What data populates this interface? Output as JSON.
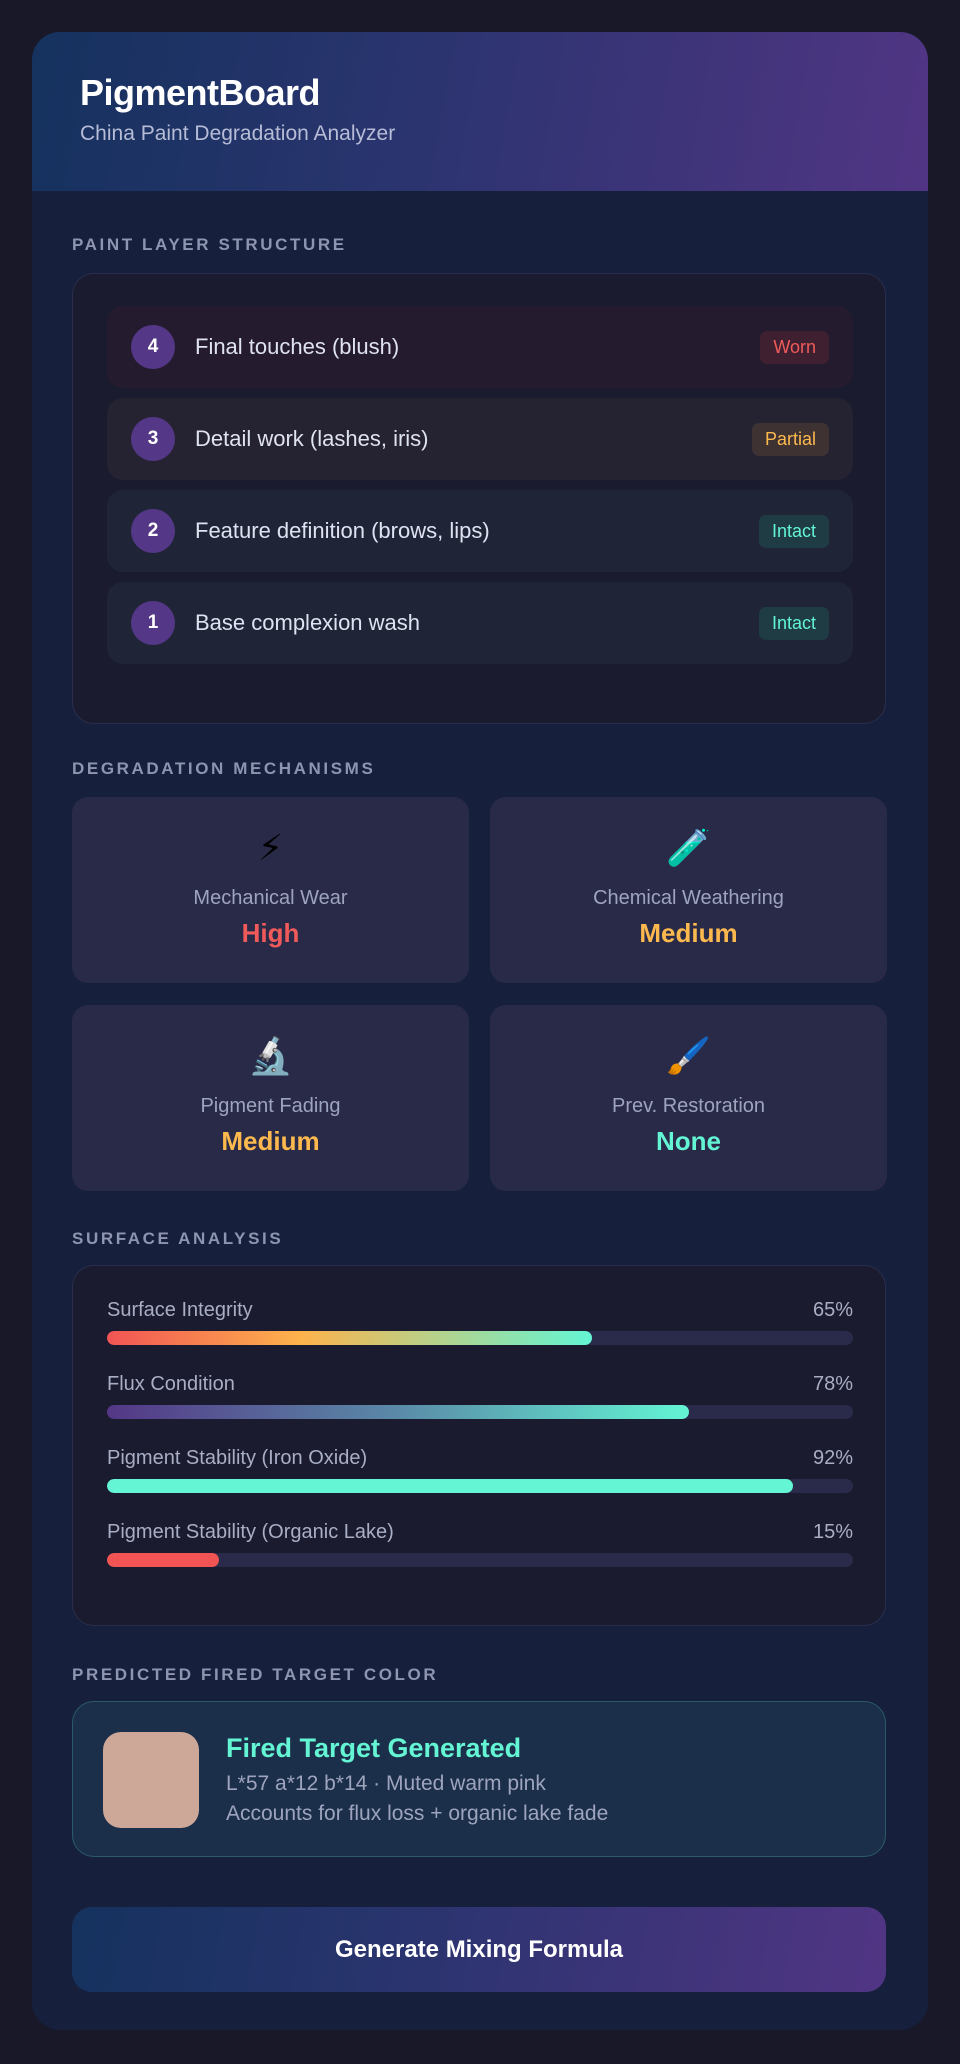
{
  "header": {
    "title": "PigmentBoard",
    "subtitle": "China Paint Degradation Analyzer"
  },
  "layers": {
    "label": "PAINT LAYER STRUCTURE",
    "items": [
      {
        "num": "4",
        "label": "Final touches (blush)",
        "status": "Worn",
        "color": "#f05a5a",
        "badge_bg": "#3e2030",
        "row_bg": "#251b2e"
      },
      {
        "num": "3",
        "label": "Detail work (lashes, iris)",
        "status": "Partial",
        "color": "#fdb94e",
        "badge_bg": "#3e3233",
        "row_bg": "#252231"
      },
      {
        "num": "2",
        "label": "Feature definition (brows, lips)",
        "status": "Intact",
        "color": "#63f5d4",
        "badge_bg": "#1f3b43",
        "row_bg": "#1f2537"
      },
      {
        "num": "1",
        "label": "Base complexion wash",
        "status": "Intact",
        "color": "#63f5d4",
        "badge_bg": "#1f3b43",
        "row_bg": "#1f2537"
      }
    ]
  },
  "mechanisms": {
    "label": "DEGRADATION MECHANISMS",
    "items": [
      {
        "icon": "⚡",
        "icon_name": "lightning-icon",
        "label": "Mechanical Wear",
        "value": "High",
        "color": "#f05a5a"
      },
      {
        "icon": "🧪",
        "icon_name": "test-tube-icon",
        "label": "Chemical Weathering",
        "value": "Medium",
        "color": "#fdb94e"
      },
      {
        "icon": "🔬",
        "icon_name": "microscope-icon",
        "label": "Pigment Fading",
        "value": "Medium",
        "color": "#fdb94e"
      },
      {
        "icon": "🖌️",
        "icon_name": "paintbrush-icon",
        "label": "Prev. Restoration",
        "value": "None",
        "color": "#63f5d4"
      }
    ]
  },
  "surface": {
    "label": "SURFACE ANALYSIS",
    "items": [
      {
        "label": "Surface Integrity",
        "value": "65%",
        "pct": 65,
        "fill": "linear-gradient(90deg,#f25454,#fdb34c 40%,#63f5d4)"
      },
      {
        "label": "Flux Condition",
        "value": "78%",
        "pct": 78,
        "fill": "linear-gradient(90deg,#543786,#5a8aa8 50%,#63f5d4)"
      },
      {
        "label": "Pigment Stability (Iron Oxide)",
        "value": "92%",
        "pct": 92,
        "fill": "#63f5d4"
      },
      {
        "label": "Pigment Stability (Organic Lake)",
        "value": "15%",
        "pct": 15,
        "fill": "#f25454"
      }
    ]
  },
  "target": {
    "label": "PREDICTED FIRED TARGET COLOR",
    "title": "Fired Target Generated",
    "line1": "L*57 a*12 b*14 · Muted warm pink",
    "line2": "Accounts for flux loss + organic lake fade",
    "swatch": "#cda898"
  },
  "button": {
    "label": "Generate Mixing Formula"
  }
}
